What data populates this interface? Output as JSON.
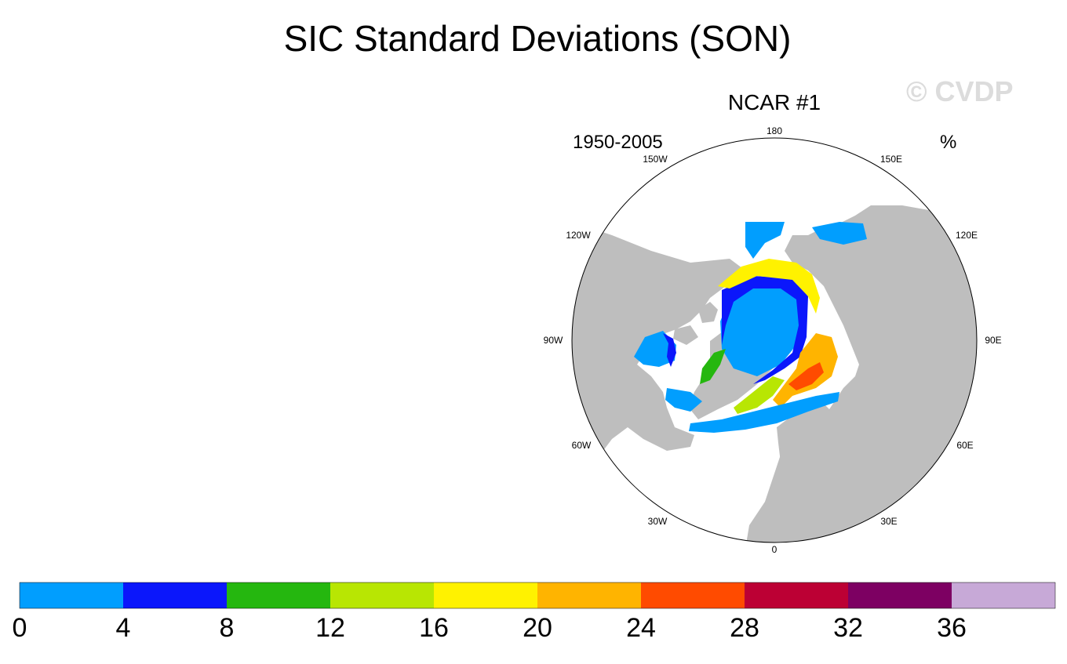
{
  "title": "SIC Standard Deviations (SON)",
  "watermark": "© CVDP",
  "panel": {
    "title": "NCAR #1",
    "period": "1950-2005",
    "units": "%"
  },
  "longitude_labels": {
    "lon_180": "180",
    "lon_150e": "150E",
    "lon_120e": "120E",
    "lon_90e": "90E",
    "lon_60e": "60E",
    "lon_30e": "30E",
    "lon_0": "0",
    "lon_30w": "30W",
    "lon_60w": "60W",
    "lon_90w": "90W",
    "lon_120w": "120W",
    "lon_150w": "150W"
  },
  "colorbar": {
    "bins": [
      {
        "from": 0,
        "to": 4,
        "color": "#019efe"
      },
      {
        "from": 4,
        "to": 8,
        "color": "#0b17fb"
      },
      {
        "from": 8,
        "to": 12,
        "color": "#25b70f"
      },
      {
        "from": 12,
        "to": 16,
        "color": "#b8e603"
      },
      {
        "from": 16,
        "to": 20,
        "color": "#fff200"
      },
      {
        "from": 20,
        "to": 24,
        "color": "#ffb400"
      },
      {
        "from": 24,
        "to": 28,
        "color": "#ff4b00"
      },
      {
        "from": 28,
        "to": 32,
        "color": "#bc0034"
      },
      {
        "from": 32,
        "to": 36,
        "color": "#7d0062"
      },
      {
        "from": 36,
        "to": null,
        "color": "#c7a9d7"
      }
    ],
    "labels": [
      "0",
      "4",
      "8",
      "12",
      "16",
      "20",
      "24",
      "28",
      "32",
      "36"
    ]
  },
  "colors": {
    "land": "#bebebe",
    "ocean": "#ffffff"
  }
}
